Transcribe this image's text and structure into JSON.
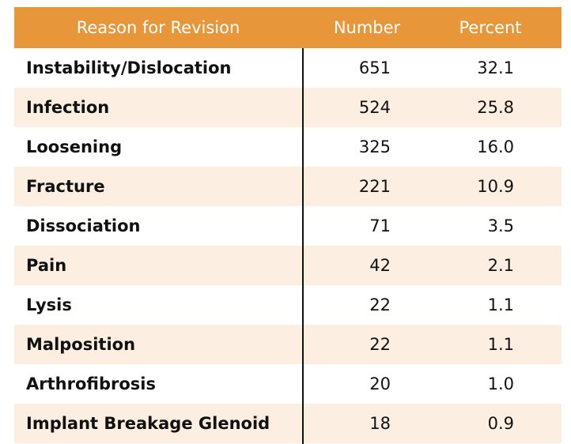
{
  "chart_data": {
    "type": "table",
    "columns": [
      "Reason for Revision",
      "Number",
      "Percent"
    ],
    "rows": [
      {
        "reason": "Instability/Dislocation",
        "number": "651",
        "percent": "32.1"
      },
      {
        "reason": "Infection",
        "number": "524",
        "percent": "25.8"
      },
      {
        "reason": "Loosening",
        "number": "325",
        "percent": "16.0"
      },
      {
        "reason": "Fracture",
        "number": "221",
        "percent": "10.9"
      },
      {
        "reason": "Dissociation",
        "number": "71",
        "percent": "3.5"
      },
      {
        "reason": "Pain",
        "number": "42",
        "percent": "2.1"
      },
      {
        "reason": "Lysis",
        "number": "22",
        "percent": "1.1"
      },
      {
        "reason": "Malposition",
        "number": "22",
        "percent": "1.1"
      },
      {
        "reason": "Arthrofibrosis",
        "number": "20",
        "percent": "1.0"
      },
      {
        "reason": "Implant Breakage Glenoid",
        "number": "18",
        "percent": "0.9"
      }
    ]
  },
  "colors": {
    "header_bg": "#e8963a",
    "header_text": "#ffffff",
    "alt_row_bg": "#fcefe2",
    "row_bg": "#ffffff",
    "divider": "#111111"
  }
}
